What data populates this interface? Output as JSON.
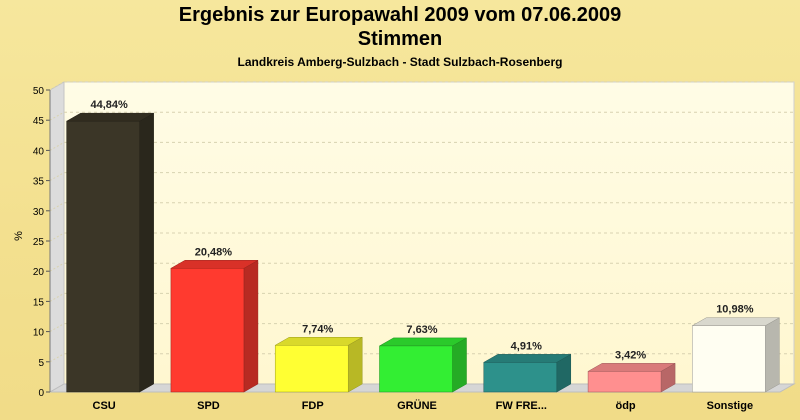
{
  "header": {
    "title": "Ergebnis zur Europawahl 2009 vom 07.06.2009",
    "title_line2": "Stimmen",
    "subtitle": "Landkreis Amberg-Sulzbach - Stadt Sulzbach-Rosenberg"
  },
  "chart_data": {
    "type": "bar",
    "title": "Ergebnis zur Europawahl 2009 vom 07.06.2009",
    "subtitle": "Landkreis Amberg-Sulzbach - Stadt Sulzbach-Rosenberg",
    "xlabel": "",
    "ylabel": "%",
    "ylim": [
      0,
      50
    ],
    "yticks": [
      0,
      5,
      10,
      15,
      20,
      25,
      30,
      35,
      40,
      45,
      50
    ],
    "grid": true,
    "legend": "none",
    "categories": [
      "CSU",
      "SPD",
      "FDP",
      "GRÜNE",
      "FW FRE...",
      "ödp",
      "Sonstige"
    ],
    "values": [
      44.84,
      20.48,
      7.74,
      7.63,
      4.91,
      3.42,
      10.98
    ],
    "value_labels": [
      "44,84%",
      "20,48%",
      "7,74%",
      "7,63%",
      "4,91%",
      "3,42%",
      "10,98%"
    ],
    "colors": [
      "#3b3627",
      "#ff3a2f",
      "#ffff33",
      "#33ee33",
      "#2d918b",
      "#ff8f8f",
      "#fffef2"
    ]
  }
}
